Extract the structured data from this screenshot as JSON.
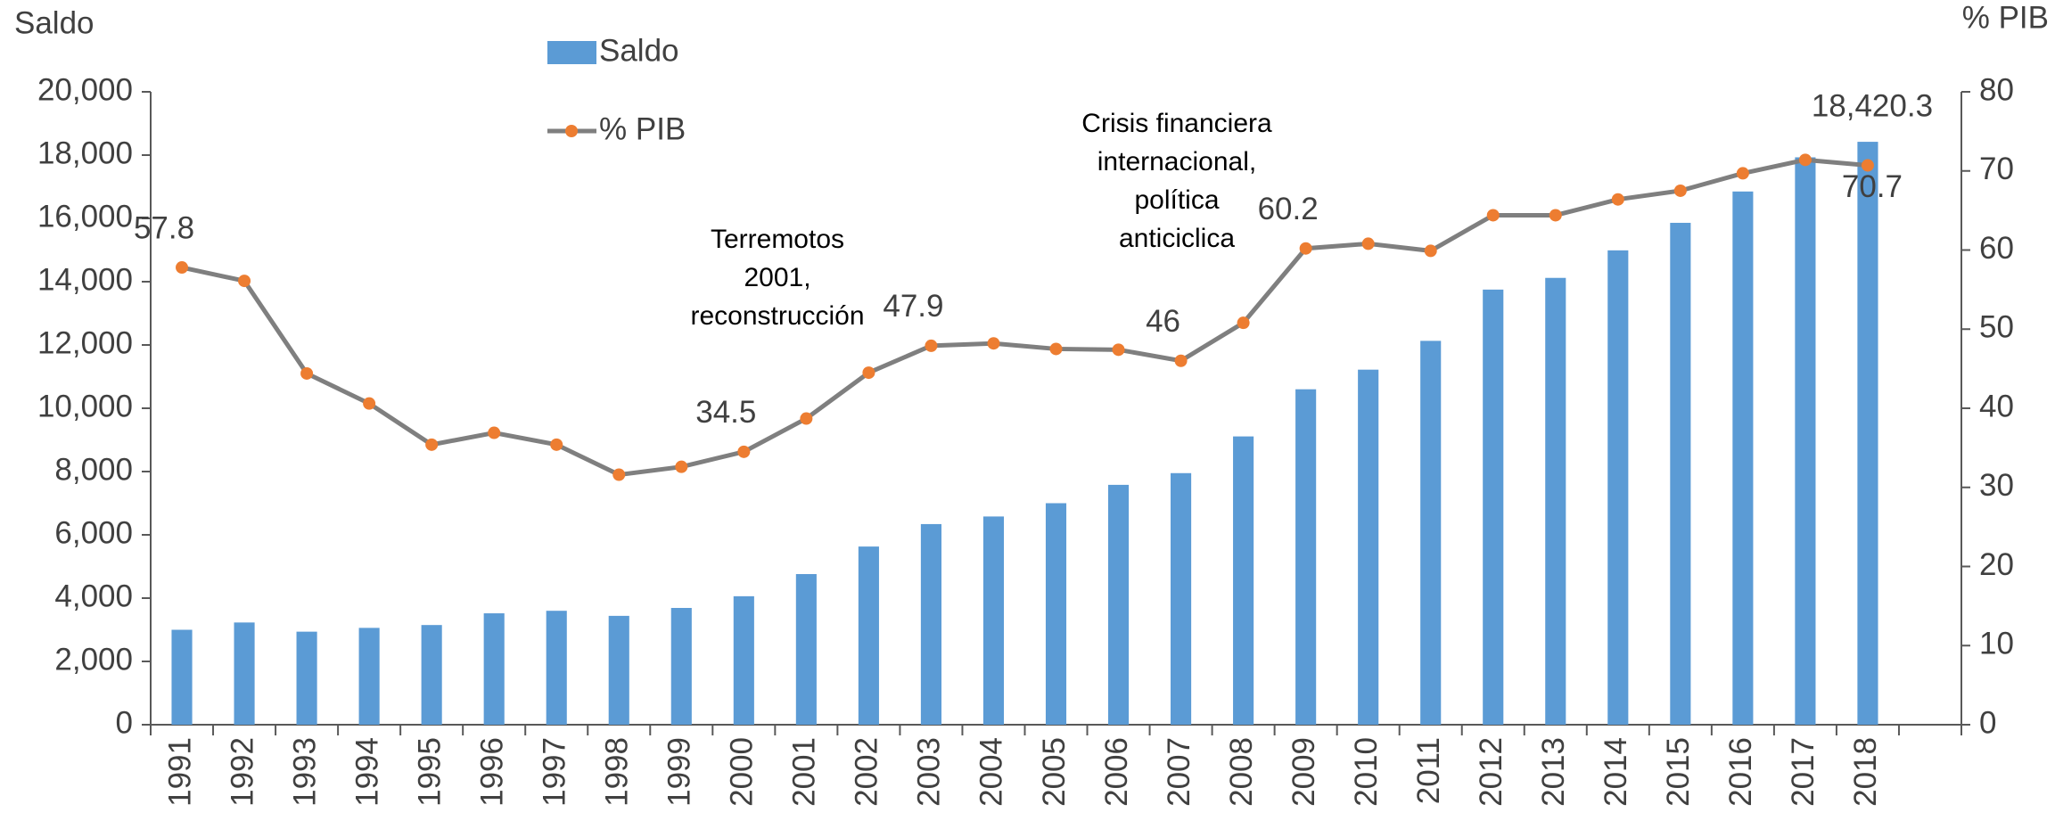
{
  "chart_data": {
    "type": "bar_line",
    "y_title": "Saldo",
    "y2_title": "% PIB",
    "categories": [
      "1991",
      "1992",
      "1993",
      "1994",
      "1995",
      "1996",
      "1997",
      "1998",
      "1999",
      "2000",
      "2001",
      "2002",
      "2003",
      "2004",
      "2005",
      "2006",
      "2007",
      "2008",
      "2009",
      "2010",
      "2011",
      "2012",
      "2013",
      "2014",
      "2015",
      "2016",
      "2017",
      "2018",
      null
    ],
    "series": [
      {
        "name": "Saldo",
        "type": "bar",
        "color": "#5b9bd5",
        "values": [
          3000,
          3230,
          2940,
          3060,
          3150,
          3520,
          3600,
          3440,
          3690,
          4060,
          4760,
          5630,
          6340,
          6580,
          7000,
          7580,
          7950,
          9110,
          10600,
          11220,
          12130,
          13750,
          14120,
          14990,
          15860,
          16850,
          17930,
          18420.3,
          null
        ],
        "value_labels": [
          null,
          null,
          null,
          null,
          null,
          null,
          null,
          null,
          null,
          null,
          null,
          null,
          null,
          null,
          null,
          null,
          null,
          null,
          null,
          null,
          null,
          null,
          null,
          null,
          null,
          null,
          null,
          "18,420.3",
          null
        ]
      },
      {
        "name": "% PIB",
        "type": "line",
        "axis": "y2",
        "color": "#7f7f7f",
        "marker_color": "#ed7d31",
        "values": [
          57.8,
          56.1,
          44.4,
          40.6,
          35.4,
          36.9,
          35.4,
          31.6,
          32.6,
          34.5,
          38.7,
          44.5,
          47.9,
          48.2,
          47.5,
          47.4,
          46,
          50.8,
          60.2,
          60.8,
          59.9,
          64.4,
          64.4,
          66.4,
          67.5,
          69.7,
          71.4,
          70.7,
          null
        ],
        "value_labels": [
          "57.8",
          null,
          null,
          null,
          null,
          null,
          null,
          null,
          null,
          "34.5",
          null,
          null,
          "47.9",
          null,
          null,
          null,
          "46",
          null,
          "60.2",
          null,
          null,
          null,
          null,
          null,
          null,
          null,
          null,
          "70.7",
          null
        ]
      }
    ],
    "ylim": [
      0,
      20000
    ],
    "yticks": [
      0,
      {
        "value": 2000,
        "label": "2,000"
      },
      {
        "value": 4000,
        "label": "4,000"
      },
      {
        "value": 6000,
        "label": "6,000"
      },
      {
        "value": 8000,
        "label": "8,000"
      },
      {
        "value": 10000,
        "label": "10,000"
      },
      {
        "value": 12000,
        "label": "12,000"
      },
      {
        "value": 14000,
        "label": "14,000"
      },
      {
        "value": 16000,
        "label": "16,000"
      },
      {
        "value": 18000,
        "label": "18,000"
      },
      {
        "value": 20000,
        "label": "20,000"
      }
    ],
    "y2lim": [
      0,
      80
    ],
    "y2ticks": [
      0,
      10,
      20,
      30,
      40,
      50,
      60,
      70,
      80
    ],
    "annotations": [
      {
        "lines": [
          "Terremotos",
          "2001,",
          "reconstrucción"
        ]
      },
      {
        "lines": [
          "Crisis financiera",
          "internacional,",
          "política",
          "anticiclica"
        ]
      }
    ]
  }
}
